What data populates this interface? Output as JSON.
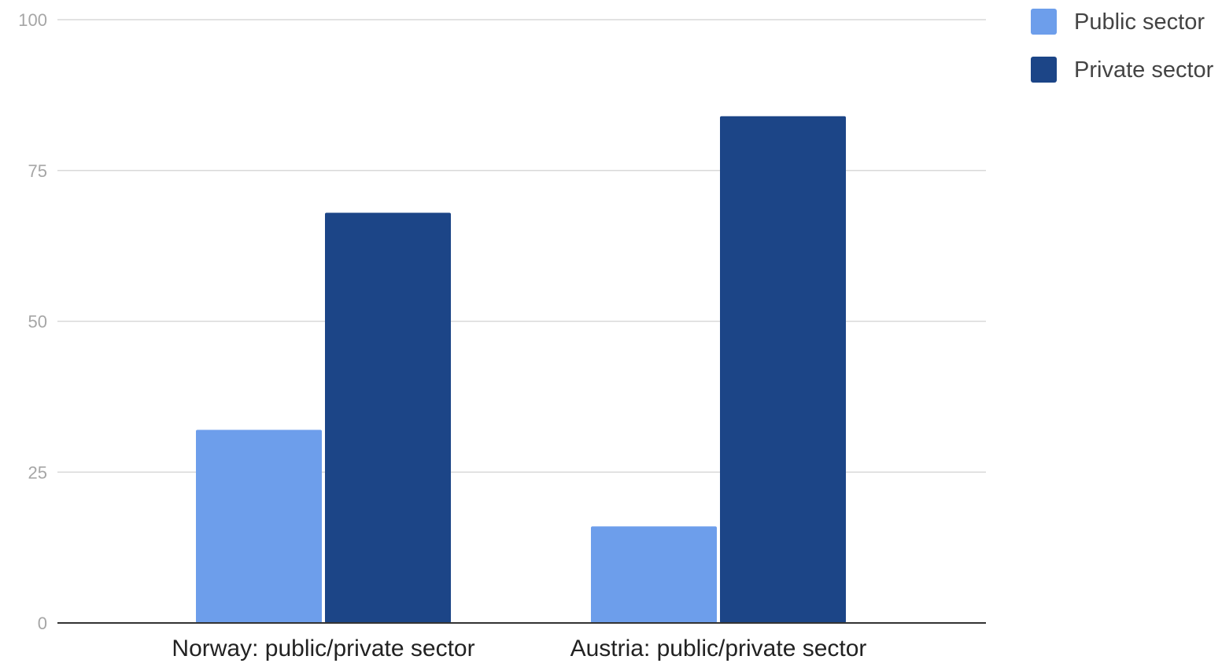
{
  "chart_data": {
    "type": "bar",
    "categories": [
      "Norway: public/private sector",
      "Austria: public/private sector"
    ],
    "series": [
      {
        "name": "Public sector",
        "color": "#6d9eeb",
        "values": [
          32,
          16
        ]
      },
      {
        "name": "Private sector",
        "color": "#1c4587",
        "values": [
          68,
          84
        ]
      }
    ],
    "title": "",
    "xlabel": "",
    "ylabel": "",
    "ylim": [
      0,
      100
    ],
    "yticks": [
      "0",
      "25",
      "50",
      "75",
      "100"
    ],
    "grid": true,
    "legend_position": "top-right"
  }
}
